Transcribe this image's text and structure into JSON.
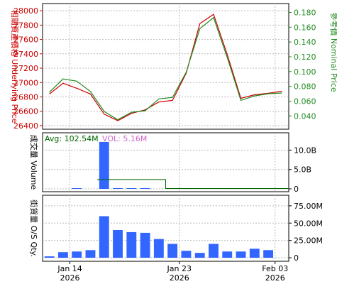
{
  "chart_data": [
    {
      "type": "line",
      "ylabel_left": "相關資產價格 Underlying Price",
      "ylabel_right": "參考價 Nominal Price",
      "ylim_left": [
        26350,
        28100
      ],
      "left_ticks": [
        "26400",
        "26600",
        "26800",
        "27000",
        "27200",
        "27400",
        "27600",
        "27800",
        "28000"
      ],
      "ylim_right": [
        0.022,
        0.192
      ],
      "right_ticks": [
        "0.040",
        "0.060",
        "0.080",
        "0.100",
        "0.120",
        "0.140",
        "0.160",
        "0.180"
      ],
      "grid": true,
      "series": [
        {
          "name": "",
          "axis": "left",
          "color": "#cc0000",
          "values": [
            26840,
            26990,
            26920,
            26840,
            26560,
            26470,
            26570,
            26620,
            26730,
            26750,
            27130,
            27820,
            27950,
            27390,
            26780,
            26830,
            26850,
            26880
          ]
        },
        {
          "name": "",
          "axis": "right",
          "color": "#228b22",
          "values": [
            0.072,
            0.09,
            0.087,
            0.073,
            0.046,
            0.035,
            0.045,
            0.047,
            0.063,
            0.065,
            0.099,
            0.158,
            0.173,
            0.119,
            0.061,
            0.067,
            0.07,
            0.071
          ]
        }
      ]
    },
    {
      "type": "bar",
      "ylabel_left": "成交量 Volume",
      "ylim": [
        0,
        13
      ],
      "right_ticks": [
        "0",
        "5.0B",
        "10.0B"
      ],
      "annotation_avg": "Avg: 102.54M",
      "annotation_vol": "VOL: 5.16M",
      "bar_color": "#3366ff",
      "bars": [
        0,
        0,
        0.07,
        0,
        12.1,
        0.08,
        0.08,
        0.08,
        0,
        0,
        0,
        0,
        0,
        0,
        0,
        0,
        0,
        0
      ],
      "line_color": "#006600",
      "line_values": [
        null,
        null,
        null,
        null,
        2.4,
        2.4,
        2.4,
        2.4,
        2.4,
        0.1,
        0.1,
        0.1,
        0.1,
        0.1,
        0.1,
        0.1,
        0.1,
        0.1
      ]
    },
    {
      "type": "bar",
      "ylabel_left": "街貨量 O/S Qty.",
      "ylim": [
        0,
        80
      ],
      "right_ticks": [
        "0",
        "25.00M",
        "50.00M",
        "75.00M"
      ],
      "bar_color": "#3366ff",
      "bars": [
        2,
        8,
        9,
        11,
        60,
        40,
        37,
        36,
        27,
        20,
        10,
        7,
        20,
        9,
        9,
        13,
        11,
        0
      ]
    }
  ],
  "x_axis": {
    "labels": [
      {
        "index": 1.5,
        "line1": "Jan 14",
        "line2": "2026"
      },
      {
        "index": 9.5,
        "line1": "Jan 23",
        "line2": "2026"
      },
      {
        "index": 16.5,
        "line1": "Feb 03",
        "line2": "2026"
      }
    ]
  }
}
